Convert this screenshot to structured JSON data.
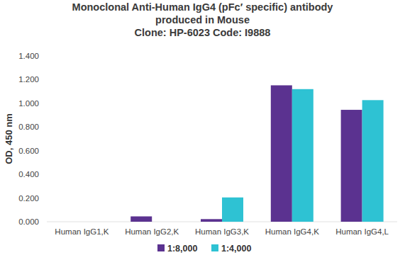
{
  "chart_data": {
    "type": "bar",
    "title": "Monoclonal Anti-Human IgG4 (pFc′ specific) antibody\nproduced in Mouse\nClone: HP-6023  Code: I9888",
    "y_label": "OD, 450 nm",
    "categories": [
      "Human IgG1,K",
      "Human IgG2,K",
      "Human IgG3,K",
      "Human IgG4,K",
      "Human IgG4,L"
    ],
    "series": [
      {
        "name": "1:8,000",
        "color": "#5b3290",
        "values": [
          0,
          0.045,
          0.022,
          1.152,
          0.945
        ]
      },
      {
        "name": "1:4,000",
        "color": "#2ec2d3",
        "values": [
          0,
          0,
          0.205,
          1.12,
          1.027
        ]
      }
    ],
    "ylim": [
      0,
      1.4
    ],
    "yticks": [
      {
        "value": 0,
        "label": "0.000"
      },
      {
        "value": 0.2,
        "label": "0.200"
      },
      {
        "value": 0.4,
        "label": "0.400"
      },
      {
        "value": 0.6,
        "label": "0.600"
      },
      {
        "value": 0.8,
        "label": "0.800"
      },
      {
        "value": 1.0,
        "label": "1.000"
      },
      {
        "value": 1.2,
        "label": "1.200"
      },
      {
        "value": 1.4,
        "label": "1.400"
      }
    ],
    "grid": false,
    "legend": "bottom"
  }
}
